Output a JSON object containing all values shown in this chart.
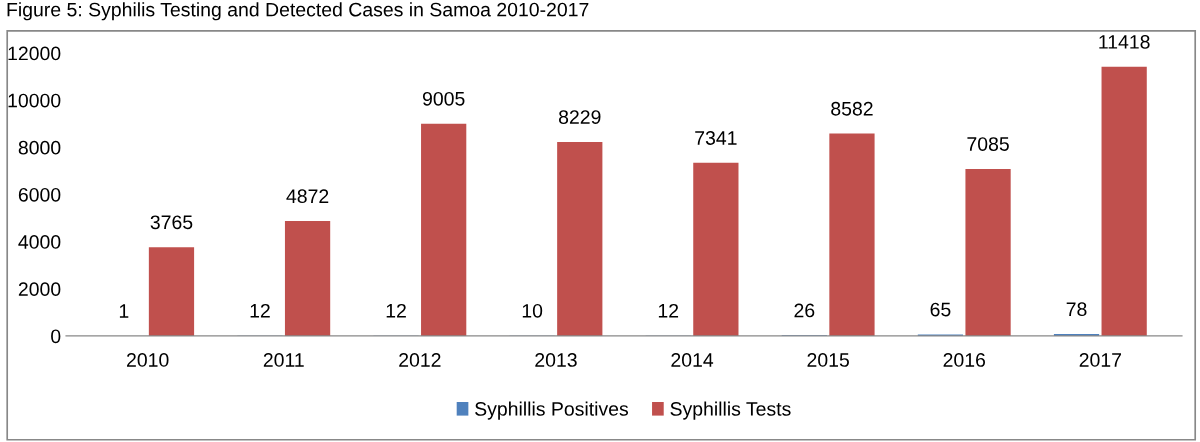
{
  "chart_data": {
    "type": "bar",
    "title": "Figure 5: Syphilis Testing and Detected Cases in Samoa 2010-2017",
    "categories": [
      "2010",
      "2011",
      "2012",
      "2013",
      "2014",
      "2015",
      "2016",
      "2017"
    ],
    "series": [
      {
        "name": "Syphillis Positives",
        "color": "#4f81bd",
        "values": [
          1,
          12,
          12,
          10,
          12,
          26,
          65,
          78
        ]
      },
      {
        "name": "Syphillis Tests",
        "color": "#c0504d",
        "values": [
          3765,
          4872,
          9005,
          8229,
          7341,
          8582,
          7085,
          11418
        ]
      }
    ],
    "ylim": [
      0,
      12000
    ],
    "yticks": [
      0,
      2000,
      4000,
      6000,
      8000,
      10000,
      12000
    ],
    "data_labels": true,
    "legend": "bottom",
    "grid": false
  }
}
